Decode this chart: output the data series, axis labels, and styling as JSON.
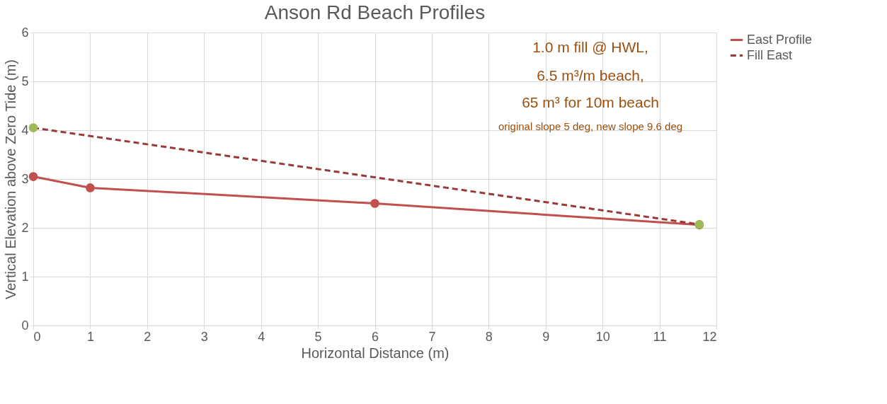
{
  "chart_data": {
    "type": "line",
    "title": "Anson Rd Beach Profiles",
    "xlabel": "Horizontal Distance (m)",
    "ylabel": "Vertical Elevation above Zero Tide (m)",
    "xlim": [
      0,
      12
    ],
    "xticks": [
      0,
      1,
      2,
      3,
      4,
      5,
      6,
      7,
      8,
      9,
      10,
      11,
      12
    ],
    "ylim": [
      0,
      6
    ],
    "yticks": [
      0,
      1,
      2,
      3,
      4,
      5,
      6
    ],
    "grid": true,
    "legend": "right",
    "marker": "circle",
    "series": [
      {
        "name": "East Profile",
        "color": "#c0504d",
        "line_style": "solid",
        "x": [
          0,
          1,
          6,
          11.7
        ],
        "values": [
          3.05,
          2.82,
          2.5,
          2.06
        ]
      },
      {
        "name": "Fill East",
        "color": "#993a3a",
        "colors": [
          "#9bbb59",
          "#9bbb59"
        ],
        "line_style": "dashed",
        "x": [
          0,
          11.7
        ],
        "values": [
          4.05,
          2.07
        ]
      }
    ],
    "annotations": [
      "1.0 m fill @ HWL,",
      "6.5 m³/m beach,",
      "65 m³ for 10m beach",
      "original slope 5 deg, new slope 9.6 deg"
    ]
  }
}
